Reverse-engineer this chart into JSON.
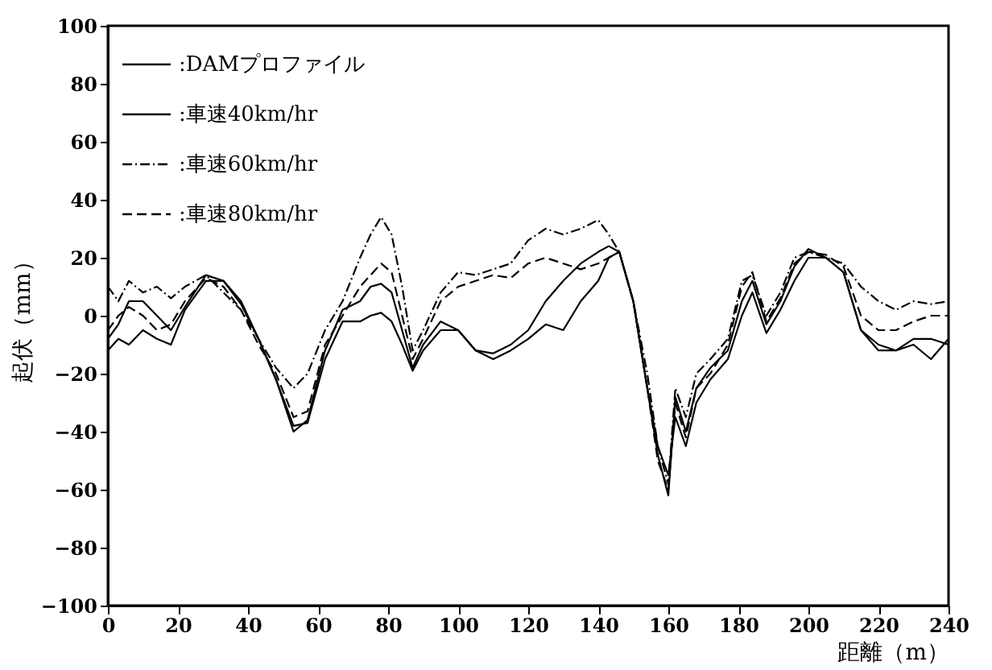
{
  "chart_data": {
    "type": "line",
    "xlabel": "距離（m）",
    "ylabel": "起伏（mm）",
    "xlim": [
      0,
      240
    ],
    "ylim": [
      -100,
      100
    ],
    "xticks": [
      0,
      20,
      40,
      60,
      80,
      100,
      120,
      140,
      160,
      180,
      200,
      220,
      240
    ],
    "yticks": [
      -100,
      -80,
      -60,
      -40,
      -20,
      0,
      20,
      40,
      60,
      80,
      100
    ],
    "grid": false,
    "legend": "top left",
    "x": [
      0,
      3,
      6,
      10,
      14,
      18,
      22,
      28,
      33,
      38,
      43,
      48,
      53,
      57,
      62,
      67,
      72,
      75,
      78,
      81,
      84,
      87,
      90,
      95,
      100,
      105,
      110,
      115,
      120,
      125,
      130,
      135,
      140,
      143,
      146,
      150,
      154,
      157,
      160,
      162,
      165,
      168,
      172,
      177,
      181,
      184,
      188,
      192,
      196,
      200,
      205,
      210,
      215,
      220,
      225,
      230,
      235,
      240
    ],
    "series": [
      {
        "name": ":DAMプロファイル",
        "color": "#000000",
        "line_style": "solid",
        "values": [
          -8,
          -3,
          5,
          5,
          0,
          -5,
          3,
          14,
          12,
          4,
          -8,
          -22,
          -40,
          -36,
          -12,
          2,
          5,
          10,
          11,
          8,
          -5,
          -18,
          -10,
          -2,
          -5,
          -12,
          -13,
          -10,
          -5,
          5,
          12,
          18,
          22,
          24,
          22,
          5,
          -25,
          -48,
          -62,
          -28,
          -40,
          -25,
          -18,
          -12,
          5,
          12,
          -3,
          5,
          17,
          23,
          20,
          15,
          -5,
          -10,
          -12,
          -8,
          -8,
          -10
        ]
      },
      {
        "name": ":車速40km/hr",
        "color": "#000000",
        "line_style": "solid",
        "values": [
          -12,
          -8,
          -10,
          -5,
          -8,
          -10,
          2,
          12,
          12,
          5,
          -8,
          -22,
          -38,
          -37,
          -15,
          -2,
          -2,
          0,
          1,
          -2,
          -10,
          -19,
          -12,
          -5,
          -5,
          -12,
          -15,
          -12,
          -8,
          -3,
          -5,
          5,
          12,
          20,
          22,
          5,
          -25,
          -45,
          -55,
          -35,
          -45,
          -30,
          -22,
          -15,
          0,
          8,
          -6,
          2,
          12,
          20,
          20,
          15,
          -5,
          -12,
          -12,
          -10,
          -15,
          -8
        ]
      },
      {
        "name": ":車速60km/hr",
        "color": "#000000",
        "line_style": "dotted",
        "values": [
          10,
          5,
          12,
          8,
          10,
          6,
          10,
          14,
          8,
          2,
          -8,
          -18,
          -25,
          -20,
          -5,
          5,
          20,
          28,
          34,
          28,
          10,
          -12,
          -5,
          8,
          15,
          14,
          16,
          18,
          26,
          30,
          28,
          30,
          33,
          28,
          22,
          5,
          -20,
          -45,
          -58,
          -25,
          -35,
          -20,
          -15,
          -8,
          12,
          14,
          0,
          8,
          20,
          22,
          20,
          18,
          10,
          5,
          2,
          5,
          4,
          5
        ]
      },
      {
        "name": ":車速80km/hr",
        "color": "#000000",
        "line_style": "dashed",
        "values": [
          -5,
          0,
          3,
          0,
          -5,
          -3,
          5,
          13,
          10,
          2,
          -10,
          -20,
          -35,
          -33,
          -10,
          0,
          10,
          14,
          18,
          15,
          0,
          -15,
          -8,
          5,
          10,
          12,
          14,
          13,
          18,
          20,
          18,
          16,
          18,
          20,
          22,
          5,
          -25,
          -50,
          -60,
          -30,
          -42,
          -25,
          -20,
          -10,
          10,
          15,
          -2,
          6,
          18,
          22,
          21,
          17,
          0,
          -5,
          -5,
          -2,
          0,
          0
        ]
      }
    ]
  }
}
